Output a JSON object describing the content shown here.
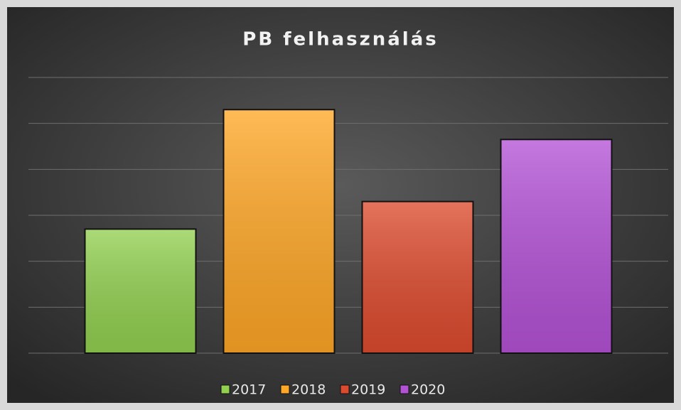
{
  "chart_data": {
    "type": "bar",
    "title": "PB felhasználás",
    "series": [
      {
        "name": "2017",
        "color": "#92d050",
        "values": [
          2.7
        ]
      },
      {
        "name": "2018",
        "color": "#ffa726",
        "values": [
          5.3
        ]
      },
      {
        "name": "2019",
        "color": "#dd4b2e",
        "values": [
          3.3
        ]
      },
      {
        "name": "2020",
        "color": "#b452d6",
        "values": [
          4.65
        ]
      }
    ],
    "ylim": [
      0,
      6
    ],
    "yticks": [
      0,
      1,
      2,
      3,
      4,
      5,
      6
    ],
    "grid": true,
    "legend": "bottom"
  }
}
